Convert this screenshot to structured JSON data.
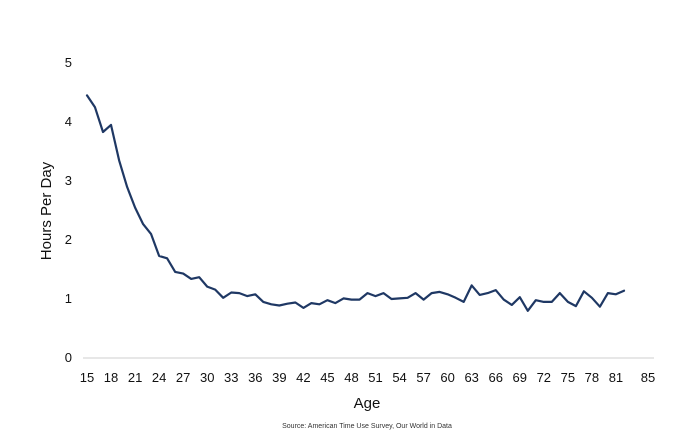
{
  "chart_data": {
    "type": "line",
    "title": "",
    "xlabel": "Age",
    "ylabel": "Hours Per Day",
    "xlim": [
      15,
      85
    ],
    "ylim": [
      0,
      5
    ],
    "x_ticks": [
      15,
      18,
      21,
      24,
      27,
      30,
      33,
      36,
      39,
      42,
      45,
      48,
      51,
      54,
      57,
      60,
      63,
      66,
      69,
      72,
      75,
      78,
      81,
      85
    ],
    "y_ticks": [
      0,
      1,
      2,
      3,
      4,
      5
    ],
    "grid": false,
    "line_color": "#1f3864",
    "source": "Source: American Time Use Survey, Our World in Data",
    "series": [
      {
        "x": [
          15,
          16,
          17,
          18,
          19,
          20,
          21,
          22,
          23,
          24,
          25,
          26,
          27,
          28,
          29,
          30,
          31,
          32,
          33,
          34,
          35,
          36,
          37,
          38,
          39,
          40,
          41,
          42,
          43,
          44,
          45,
          46,
          47,
          48,
          49,
          50,
          51,
          52,
          53,
          54,
          55,
          56,
          57,
          58,
          59,
          60,
          61,
          62,
          63,
          64,
          65,
          66,
          67,
          68,
          69,
          70,
          71,
          72,
          73,
          74,
          75,
          76,
          77,
          78,
          79,
          80,
          81,
          82
        ],
        "y": [
          4.45,
          4.25,
          3.83,
          3.95,
          3.35,
          2.9,
          2.55,
          2.27,
          2.1,
          1.73,
          1.69,
          1.46,
          1.43,
          1.34,
          1.37,
          1.21,
          1.16,
          1.02,
          1.11,
          1.1,
          1.05,
          1.08,
          0.95,
          0.91,
          0.89,
          0.92,
          0.94,
          0.85,
          0.93,
          0.91,
          0.98,
          0.93,
          1.01,
          0.99,
          0.99,
          1.1,
          1.05,
          1.1,
          1.0,
          1.01,
          1.02,
          1.1,
          0.99,
          1.1,
          1.12,
          1.08,
          1.02,
          0.95,
          1.23,
          1.07,
          1.1,
          1.15,
          0.99,
          0.9,
          1.03,
          0.8,
          0.98,
          0.95,
          0.95,
          1.1,
          0.95,
          0.88,
          1.13,
          1.02,
          0.87,
          1.1,
          1.08,
          1.14
        ]
      }
    ]
  }
}
